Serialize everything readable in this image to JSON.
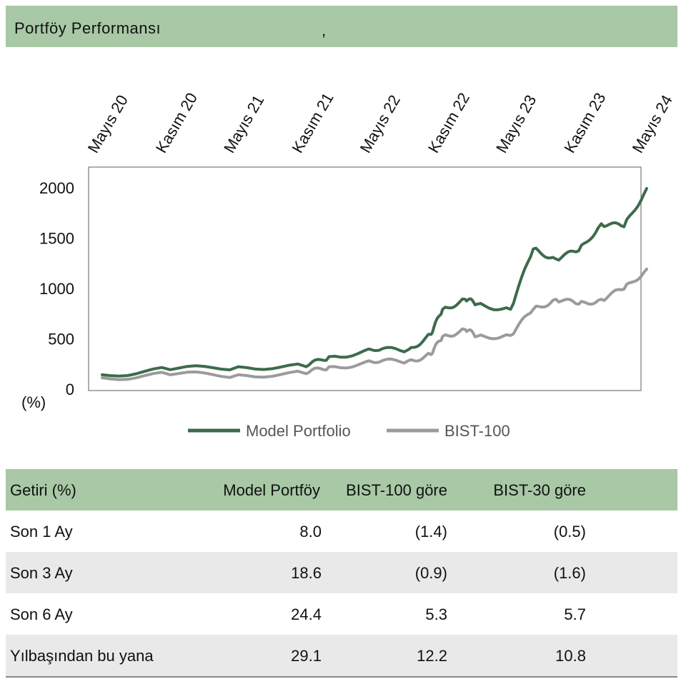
{
  "header": {
    "title": "Portföy  Performansı",
    "mark": ","
  },
  "chart_data": {
    "type": "line",
    "x_ticks": [
      "Mayıs 20",
      "Kasım 20",
      "Mayıs 21",
      "Kasım 21",
      "Mayıs 22",
      "Kasım 22",
      "Mayıs 23",
      "Kasım 23",
      "Mayıs 24"
    ],
    "y_ticks": [
      "2000",
      "1500",
      "1000",
      "500",
      "0"
    ],
    "ylabel": "(%)",
    "ylim": [
      0,
      2000
    ],
    "grid": false,
    "legend_position": "bottom",
    "series": [
      {
        "name": "Model Portfolio",
        "color": "#3d6b4a",
        "x": [
          "Mayıs 20",
          "Kasım 20",
          "Mayıs 21",
          "Kasım 21",
          "Ocak 22",
          "Mayıs 22",
          "Ağustos 22",
          "Ekim 22",
          "Kasım 22",
          "Ocak 23",
          "Şubat 23",
          "Mayıs 23",
          "Temmuz 23",
          "Eylül 23",
          "Kasım 23",
          "Ocak 24",
          "Mart 24",
          "Mayıs 24"
        ],
        "values": [
          150,
          200,
          230,
          230,
          330,
          390,
          400,
          550,
          800,
          900,
          850,
          800,
          1400,
          1300,
          1380,
          1650,
          1620,
          2000
        ]
      },
      {
        "name": "BIST-100",
        "color": "#9b9b9b",
        "x": [
          "Mayıs 20",
          "Kasım 20",
          "Mayıs 21",
          "Kasım 21",
          "Ocak 22",
          "Mayıs 22",
          "Ağustos 22",
          "Ekim 22",
          "Kasım 22",
          "Ocak 23",
          "Şubat 23",
          "Mayıs 23",
          "Temmuz 23",
          "Eylül 23",
          "Kasım 23",
          "Ocak 24",
          "Mart 24",
          "Mayıs 24"
        ],
        "values": [
          120,
          150,
          150,
          160,
          230,
          270,
          290,
          350,
          530,
          600,
          530,
          540,
          800,
          900,
          850,
          900,
          1000,
          1200
        ]
      }
    ]
  },
  "table": {
    "headers": [
      "Getiri (%)",
      "Model Portföy",
      "BIST-100 göre",
      "BIST-30 göre"
    ],
    "rows": [
      [
        "Son 1 Ay",
        "8.0",
        "(1.4)",
        "(0.5)"
      ],
      [
        "Son 3 Ay",
        "18.6",
        "(0.9)",
        "(1.6)"
      ],
      [
        "Son 6 Ay",
        "24.4",
        "5.3",
        "5.7"
      ],
      [
        "Yılbaşından bu yana",
        "29.1",
        "12.2",
        "10.8"
      ]
    ]
  }
}
